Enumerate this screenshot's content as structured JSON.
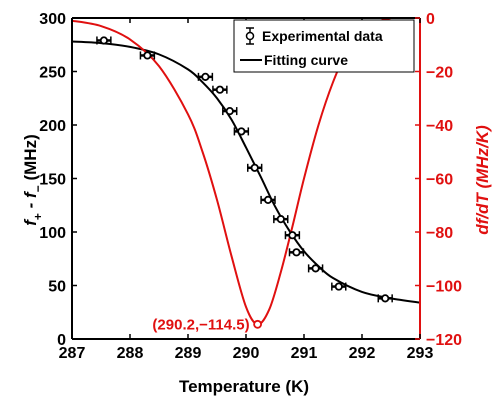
{
  "chart_data": {
    "type": "line",
    "xlabel": "Temperature (K)",
    "ylabel_left": {
      "f": "f",
      "plus": "+",
      "minus": " - f",
      "sub": "−",
      "unit": " (MHz)"
    },
    "ylabel_right": "df/dT (MHz/K)",
    "xlim": [
      287,
      293
    ],
    "ylim_left": [
      0,
      300
    ],
    "ylim_right": [
      -120,
      0
    ],
    "x_ticks": [
      "287",
      "288",
      "289",
      "290",
      "291",
      "292",
      "293"
    ],
    "y_left_ticks": [
      "0",
      "50",
      "100",
      "150",
      "200",
      "250",
      "300"
    ],
    "y_right_ticks": [
      "0",
      "−20",
      "−40",
      "−60",
      "−80",
      "−100",
      "−120"
    ],
    "legend": {
      "placement": "top-right",
      "entries": [
        "Experimental data",
        "Fitting curve"
      ]
    },
    "annotation": {
      "text": "(290.2,−114.5)",
      "x": 290.2,
      "y": -114.5
    },
    "colors": {
      "left_axis": "#000000",
      "right_axis": "#e01010"
    },
    "series": [
      {
        "name": "Experimental data",
        "axis": "left",
        "marker": "circle-with-errorbars",
        "x": [
          287.55,
          288.3,
          289.3,
          289.55,
          289.72,
          289.92,
          290.15,
          290.38,
          290.6,
          290.8,
          290.87,
          291.2,
          291.6,
          292.4
        ],
        "y": [
          279,
          265,
          245,
          233,
          213,
          194,
          160,
          130,
          112,
          97,
          81,
          66,
          49,
          38
        ],
        "xerr": 0.12
      },
      {
        "name": "Fitting curve",
        "axis": "left",
        "x": [
          287.0,
          287.5,
          288.0,
          288.5,
          289.0,
          289.25,
          289.5,
          289.75,
          290.0,
          290.25,
          290.5,
          290.75,
          291.0,
          291.25,
          291.5,
          292.0,
          292.5,
          293.0
        ],
        "y": [
          278,
          276.5,
          273,
          266,
          252,
          240,
          225,
          205,
          179,
          152,
          124,
          101,
          82,
          68,
          57,
          44,
          38,
          34
        ]
      },
      {
        "axis": "right",
        "x": [
          287.0,
          287.5,
          288.0,
          288.5,
          289.0,
          289.25,
          289.5,
          289.75,
          290.0,
          290.2,
          290.4,
          290.6,
          290.8,
          291.0,
          291.25,
          291.5,
          291.75,
          292.0,
          292.25,
          292.5
        ],
        "y": [
          -1,
          -3,
          -8,
          -18,
          -36,
          -50,
          -68,
          -89,
          -108,
          -114.5,
          -109,
          -95,
          -78,
          -60,
          -40,
          -24,
          -12,
          -5,
          -1.5,
          0
        ]
      }
    ]
  }
}
